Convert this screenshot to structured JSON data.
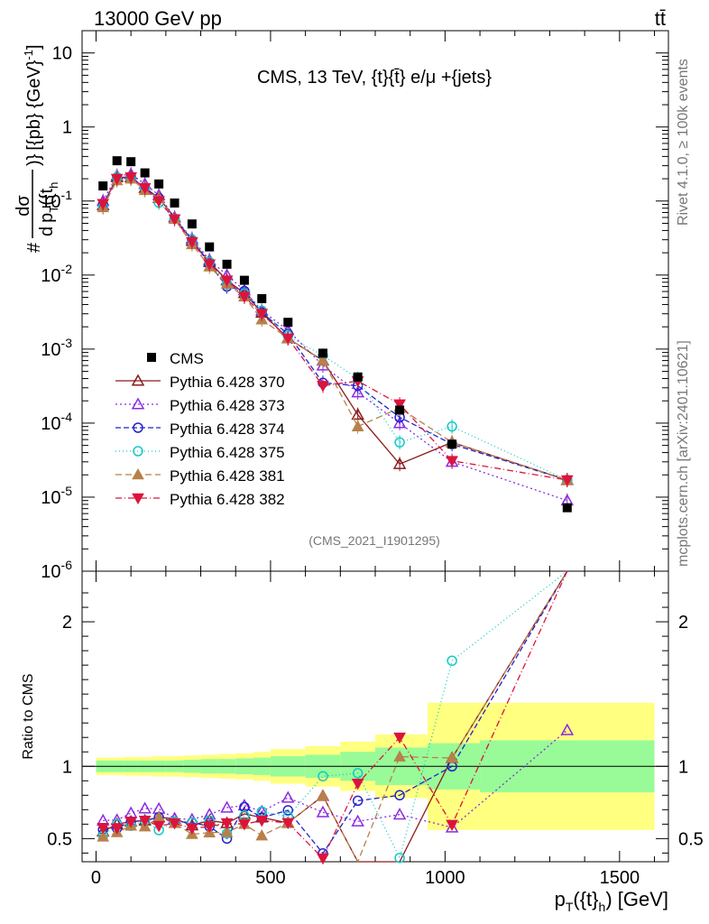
{
  "header": {
    "left": "13000 GeV pp",
    "right": "tt̄"
  },
  "side_texts": {
    "rivet": "Rivet 4.1.0, ≥ 100k events",
    "mcplots": "mcplots.cern.ch [arXiv:2401.10621]"
  },
  "chart_data": {
    "type": "scatter",
    "title": "CMS, 13 TeV, {t}{t̄} e/μ +{jets}",
    "watermark": "(CMS_2021_I1901295)",
    "xlabel": "p_T({t}_h) [GeV]",
    "ylabel_top": "#dσ / d p_T({t}_h) [{pb} {GeV}^-1]",
    "ylabel_top_parts": {
      "hash": "#",
      "num": "dσ",
      "den_d": "d",
      "den_p": "p",
      "den_T": "T",
      "den_paren": "({t",
      "den_h": "h",
      "den_close": ")}",
      "units": "[{pb} {GeV}",
      "units_exp": "-1",
      "units_close": "]"
    },
    "xlabel_parts": {
      "p": "p",
      "T": "T",
      "open": "({t}",
      "h": "h",
      "close": ") [GeV]"
    },
    "ylabel_ratio": "Ratio to CMS",
    "x_range": [
      -40,
      1640
    ],
    "top_ylim_log": [
      1e-06,
      20
    ],
    "ratio_ylim": [
      0.34,
      2.35
    ],
    "x_ticks": [
      0,
      500,
      1000,
      1500
    ],
    "x_tick_labels": [
      "0",
      "500",
      "1000",
      "1500"
    ],
    "top_y_ticks": [
      1e-06,
      1e-05,
      0.0001,
      0.001,
      0.01,
      0.1,
      1,
      10
    ],
    "top_y_tick_labels": [
      {
        "base": "10",
        "exp": "-6"
      },
      {
        "base": "10",
        "exp": "-5"
      },
      {
        "base": "10",
        "exp": "-4"
      },
      {
        "base": "10",
        "exp": "-3"
      },
      {
        "base": "10",
        "exp": "-2"
      },
      {
        "base": "10",
        "exp": "-1"
      },
      {
        "base": "1",
        "exp": ""
      },
      {
        "base": "10",
        "exp": ""
      }
    ],
    "ratio_y_ticks": [
      0.5,
      1,
      2
    ],
    "ratio_y_tick_labels": [
      "0.5",
      "1",
      "2"
    ],
    "x": [
      20,
      60,
      100,
      140,
      180,
      225,
      275,
      325,
      375,
      425,
      475,
      550,
      650,
      750,
      870,
      1020,
      1350
    ],
    "bin_edges": [
      0,
      40,
      80,
      120,
      160,
      200,
      250,
      300,
      350,
      400,
      450,
      500,
      600,
      700,
      800,
      950,
      1100,
      1600
    ],
    "band_green_halfwidth": [
      0.04,
      0.04,
      0.04,
      0.04,
      0.04,
      0.04,
      0.045,
      0.05,
      0.05,
      0.055,
      0.06,
      0.07,
      0.08,
      0.1,
      0.13,
      0.16,
      0.18
    ],
    "band_yellow_halfwidth": [
      0.06,
      0.06,
      0.065,
      0.065,
      0.07,
      0.07,
      0.075,
      0.08,
      0.085,
      0.09,
      0.1,
      0.12,
      0.14,
      0.17,
      0.22,
      0.44,
      0.44
    ],
    "data": {
      "name": "CMS",
      "values": [
        0.16,
        0.35,
        0.34,
        0.24,
        0.17,
        0.094,
        0.049,
        0.024,
        0.014,
        0.0085,
        0.0048,
        0.0023,
        0.00088,
        0.00042,
        0.00015,
        5.2e-05,
        7.2e-06
      ]
    },
    "series": [
      {
        "name": "Pythia 6.428 370",
        "color": "#8B1A1A",
        "marker": "tri-up-open",
        "dash": "",
        "values": [
          0.088,
          0.21,
          0.21,
          0.15,
          0.11,
          0.06,
          0.029,
          0.015,
          0.0085,
          0.0057,
          0.0031,
          0.0014,
          0.0007,
          0.00013,
          2.8e-05,
          5.5e-05,
          1.7e-05
        ]
      },
      {
        "name": "Pythia 6.428 373",
        "color": "#8B2BE2",
        "marker": "tri-up-open",
        "dash": "2,3",
        "values": [
          0.1,
          0.22,
          0.23,
          0.17,
          0.12,
          0.06,
          0.031,
          0.016,
          0.01,
          0.0062,
          0.0033,
          0.0018,
          0.0006,
          0.00026,
          0.0001,
          3e-05,
          9e-06
        ]
      },
      {
        "name": "Pythia 6.428 374",
        "color": "#2222CC",
        "marker": "circle-open",
        "dash": "6,3",
        "values": [
          0.09,
          0.2,
          0.21,
          0.15,
          0.11,
          0.058,
          0.03,
          0.014,
          0.007,
          0.0061,
          0.0031,
          0.0016,
          0.00035,
          0.00032,
          0.00012,
          5.2e-05,
          1.7e-05
        ]
      },
      {
        "name": "Pythia 6.428 375",
        "color": "#16C8C8",
        "marker": "circle-open",
        "dash": "1,3",
        "values": [
          0.083,
          0.21,
          0.2,
          0.15,
          0.095,
          0.058,
          0.03,
          0.015,
          0.0075,
          0.0056,
          0.0033,
          0.0015,
          0.00082,
          0.0004,
          5.5e-05,
          9e-05,
          1.7e-05
        ]
      },
      {
        "name": "Pythia 6.428 381",
        "color": "#B8804A",
        "marker": "tri-up-filled",
        "dash": "7,4",
        "values": [
          0.082,
          0.19,
          0.2,
          0.14,
          0.11,
          0.057,
          0.026,
          0.013,
          0.0076,
          0.0051,
          0.0025,
          0.0014,
          0.0007,
          9e-05,
          0.00016,
          5.5e-05,
          1.7e-05
        ]
      },
      {
        "name": "Pythia 6.428 382",
        "color": "#DC143C",
        "marker": "tri-down-filled",
        "dash": "7,3,1,3",
        "values": [
          0.092,
          0.2,
          0.21,
          0.15,
          0.1,
          0.057,
          0.028,
          0.014,
          0.0085,
          0.0051,
          0.003,
          0.0014,
          0.00032,
          0.00037,
          0.00018,
          3.1e-05,
          1.7e-05
        ]
      }
    ]
  }
}
